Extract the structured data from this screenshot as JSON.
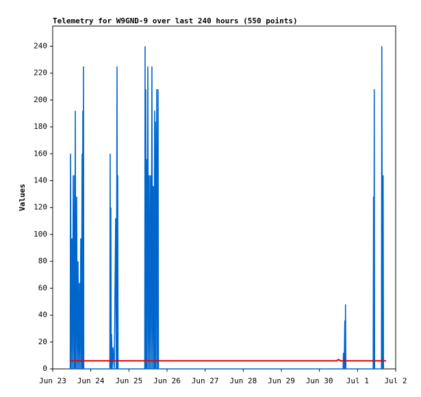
{
  "chart_data": {
    "type": "line",
    "title": "Telemetry for W9GND-9 over last 240 hours (550 points)",
    "y_label": "Values",
    "xlim": [
      0,
      9
    ],
    "xticks": [
      {
        "value": 0,
        "label": "Jun 23"
      },
      {
        "value": 1,
        "label": "Jun 24"
      },
      {
        "value": 2,
        "label": "Jun 25"
      },
      {
        "value": 3,
        "label": "Jun 26"
      },
      {
        "value": 4,
        "label": "Jun 27"
      },
      {
        "value": 5,
        "label": "Jun 28"
      },
      {
        "value": 6,
        "label": "Jun 29"
      },
      {
        "value": 7,
        "label": "Jun 30"
      },
      {
        "value": 8,
        "label": "Jul 1"
      },
      {
        "value": 9,
        "label": "Jul 2"
      }
    ],
    "ylim": [
      0,
      255
    ],
    "yticks": [
      0,
      20,
      40,
      60,
      80,
      100,
      120,
      140,
      160,
      180,
      200,
      220,
      240
    ],
    "series": [
      {
        "color": "#0066cc",
        "x": [
          0.46,
          0.467,
          0.485,
          0.503,
          0.521,
          0.539,
          0.557,
          0.575,
          0.583,
          0.592,
          0.61,
          0.628,
          0.646,
          0.664,
          0.682,
          0.7,
          0.718,
          0.736,
          0.754,
          0.772,
          0.781,
          0.79,
          0.799,
          0.808,
          0.815,
          1.5,
          1.508,
          1.517,
          1.526,
          1.535,
          1.544,
          1.562,
          1.58,
          1.616,
          1.652,
          1.67,
          1.688,
          1.697,
          1.706,
          1.715,
          2.415,
          2.424,
          2.433,
          2.442,
          2.451,
          2.46,
          2.478,
          2.496,
          2.514,
          2.531,
          2.549,
          2.567,
          2.585,
          2.603,
          2.621,
          2.639,
          2.657,
          2.675,
          2.684,
          2.693,
          2.711,
          2.729,
          2.747,
          2.765,
          2.775,
          7.62,
          7.63,
          7.648,
          7.666,
          7.675,
          7.684,
          7.693,
          8.41,
          8.42,
          8.429,
          8.438,
          8.447,
          8.627,
          8.636,
          8.654,
          8.671,
          8.68
        ],
        "values": [
          0,
          160,
          0,
          97,
          0,
          144,
          0,
          144,
          0,
          192,
          0,
          128,
          0,
          80,
          0,
          64,
          0,
          97,
          0,
          160,
          0,
          192,
          0,
          225,
          0,
          0,
          160,
          0,
          120,
          0,
          26,
          0,
          16,
          0,
          112,
          0,
          225,
          0,
          144,
          0,
          0,
          240,
          0,
          208,
          0,
          156,
          0,
          225,
          0,
          144,
          0,
          144,
          0,
          225,
          0,
          136,
          0,
          192,
          0,
          184,
          0,
          208,
          0,
          208,
          0,
          0,
          12,
          0,
          36,
          0,
          48,
          0,
          0,
          128,
          0,
          208,
          0,
          0,
          240,
          0,
          144,
          0
        ]
      },
      {
        "color": "#e00000",
        "x": [
          0.45,
          7.45,
          7.5,
          7.55,
          8.75
        ],
        "values": [
          6,
          6,
          7,
          6,
          6
        ]
      }
    ]
  }
}
